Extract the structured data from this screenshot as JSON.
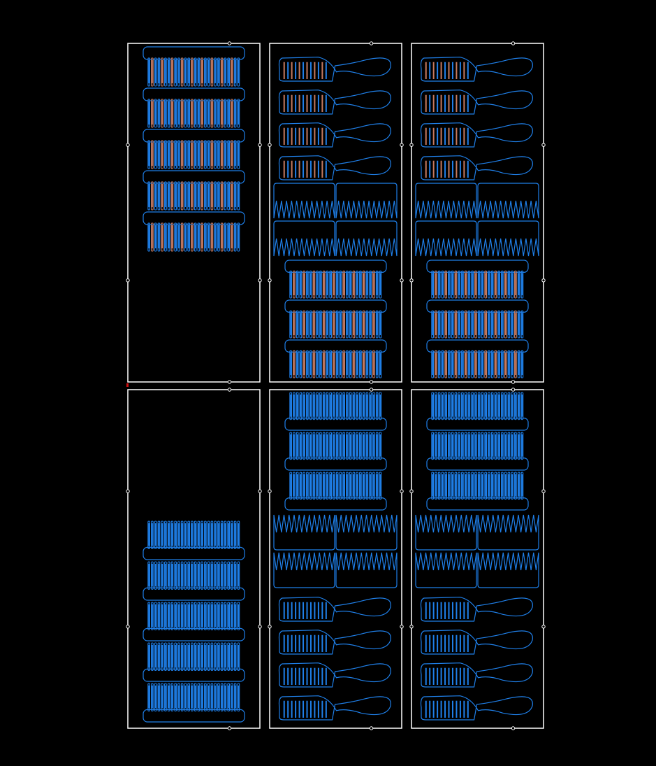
{
  "colors": {
    "background": "#000000",
    "sheet_border": "#ffffff",
    "outline": "#1f7fe8",
    "tooth_fill": "#1f7fe8",
    "engrave": "#c47a60",
    "origin_marker": "#d01010"
  },
  "sheets": [
    {
      "id": "top-left",
      "layout": "wide-combs",
      "count": 5,
      "engraved": true
    },
    {
      "id": "top-middle",
      "layout": "handles-clips-wide",
      "count": 13,
      "engraved": true
    },
    {
      "id": "top-right",
      "layout": "handles-clips-wide",
      "count": 13,
      "engraved": true
    },
    {
      "id": "bottom-left",
      "layout": "wide-combs-bottom",
      "count": 5,
      "engraved": false
    },
    {
      "id": "bottom-middle",
      "layout": "wide-clips-handles",
      "count": 13,
      "engraved": false
    },
    {
      "id": "bottom-right",
      "layout": "wide-clips-handles",
      "count": 13,
      "engraved": false
    }
  ],
  "icons": {
    "comb": "wide-comb-icon",
    "handle_comb": "handle-comb-icon",
    "hair_clip": "hair-clip-icon",
    "tab": "alignment-tab-icon"
  }
}
